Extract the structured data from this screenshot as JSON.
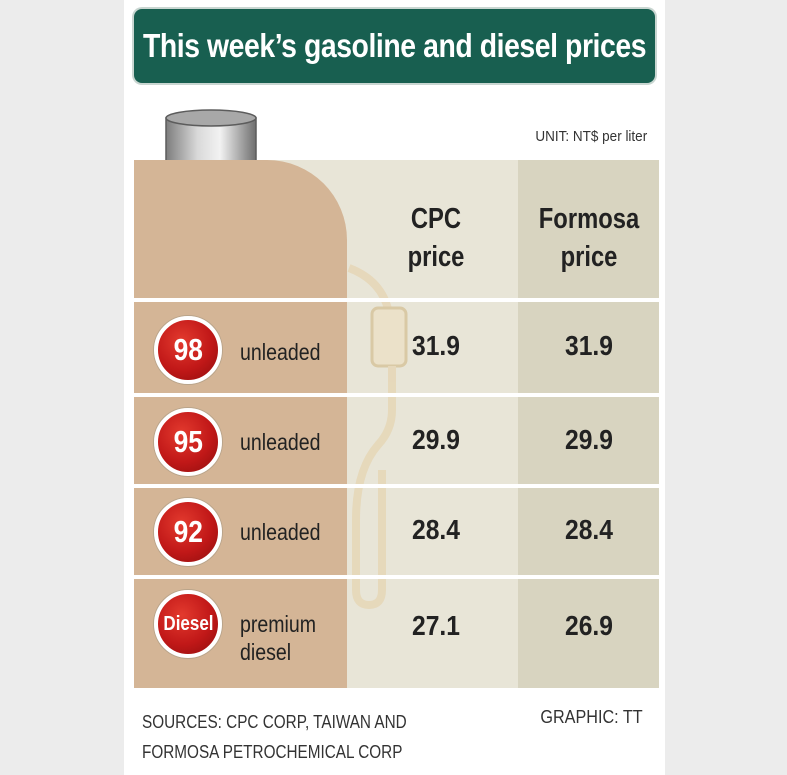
{
  "title": "This week’s gasoline and diesel prices",
  "unit": "UNIT: NT$ per liter",
  "columns": {
    "cpc": [
      "CPC",
      "price"
    ],
    "formosa": [
      "Formosa",
      "price"
    ]
  },
  "rows": [
    {
      "badge": "98",
      "label_lines": [
        "unleaded"
      ]
    },
    {
      "badge": "95",
      "label_lines": [
        "unleaded"
      ]
    },
    {
      "badge": "92",
      "label_lines": [
        "unleaded"
      ]
    },
    {
      "badge": "Diesel",
      "label_lines": [
        "premium",
        "diesel"
      ]
    }
  ],
  "footer": {
    "sources_lines": [
      "SOURCES: CPC CORP, TAIWAN AND",
      "FORMOSA PETROCHEMICAL CORP"
    ],
    "credit": "GRAPHIC: TT"
  },
  "colors": {
    "banner": "#185f50",
    "badge": "#c11818",
    "left_column": "#d4b596",
    "table_background": "#e8e5d7"
  },
  "icons": [
    "oil-barrel-icon",
    "fuel-nozzle-icon"
  ],
  "chart_data": {
    "type": "table",
    "title": "This week’s gasoline and diesel prices",
    "unit": "NT$ per liter",
    "categories": [
      "98 unleaded",
      "95 unleaded",
      "92 unleaded",
      "premium diesel"
    ],
    "series": [
      {
        "name": "CPC price",
        "values": [
          31.9,
          29.9,
          28.4,
          27.1
        ]
      },
      {
        "name": "Formosa price",
        "values": [
          31.9,
          29.9,
          28.4,
          26.9
        ]
      }
    ]
  }
}
